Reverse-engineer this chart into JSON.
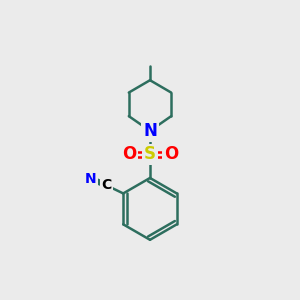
{
  "background_color": "#ebebeb",
  "bond_color": "#2d6e5e",
  "N_color": "#0000ff",
  "S_color": "#cccc00",
  "O_color": "#ff0000",
  "C_label_color": "#000000",
  "bond_width": 1.8,
  "figsize": [
    3.0,
    3.0
  ],
  "dpi": 100,
  "xlim": [
    0,
    10
  ],
  "ylim": [
    0,
    10
  ]
}
